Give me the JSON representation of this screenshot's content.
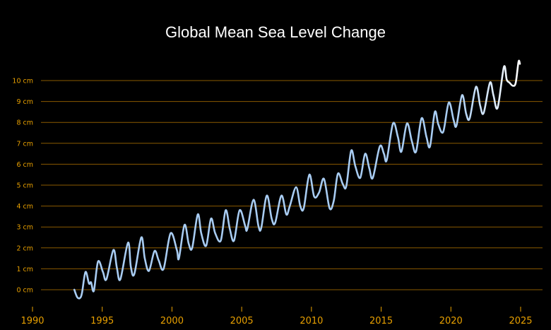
{
  "chart_data": {
    "type": "line",
    "title": "Global Mean Sea Level Change",
    "xlabel": "",
    "ylabel": "",
    "xlim": [
      1990,
      2025
    ],
    "ylim": [
      -1,
      11
    ],
    "x_ticks": [
      "1990",
      "1995",
      "2000",
      "2005",
      "2010",
      "2015",
      "2020",
      "2025"
    ],
    "y_ticks": [
      "0 cm",
      "1 cm",
      "2 cm",
      "3 cm",
      "4 cm",
      "5 cm",
      "6 cm",
      "7 cm",
      "8 cm",
      "9 cm",
      "10 cm"
    ],
    "grid": "horizontal",
    "colors": {
      "line_start": "#a8ccf2",
      "line_end": "#ffffff",
      "grid": "#8a5a00",
      "tick_labels": "#e8a000",
      "title": "#ffffff",
      "background": "#000000"
    },
    "series": [
      {
        "x": [
          1993.0,
          1993.2,
          1993.4,
          1993.55,
          1993.8,
          1994.05,
          1994.2,
          1994.4,
          1994.7,
          1995.05,
          1995.3,
          1995.8,
          1996.05,
          1996.3,
          1996.85,
          1997.05,
          1997.3,
          1997.8,
          1998.05,
          1998.35,
          1998.75,
          1999.05,
          1999.4,
          1999.9,
          2000.35,
          2000.5,
          2000.9,
          2001.2,
          2001.45,
          2001.85,
          2002.1,
          2002.45,
          2002.8,
          2003.1,
          2003.5,
          2003.85,
          2004.15,
          2004.45,
          2004.85,
          2005.25,
          2005.4,
          2005.85,
          2006.2,
          2006.4,
          2006.8,
          2007.15,
          2007.4,
          2007.85,
          2008.2,
          2008.45,
          2008.9,
          2009.2,
          2009.45,
          2009.85,
          2010.2,
          2010.55,
          2010.9,
          2011.3,
          2011.6,
          2011.9,
          2012.25,
          2012.5,
          2012.85,
          2013.15,
          2013.5,
          2013.85,
          2014.15,
          2014.4,
          2014.9,
          2015.2,
          2015.4,
          2015.85,
          2016.2,
          2016.45,
          2016.85,
          2017.2,
          2017.5,
          2017.9,
          2018.25,
          2018.5,
          2018.85,
          2019.1,
          2019.45,
          2019.85,
          2020.2,
          2020.4,
          2020.8,
          2021.1,
          2021.35,
          2021.8,
          2022.1,
          2022.35,
          2022.8,
          2023.05,
          2023.35,
          2023.8,
          2024.0,
          2024.2,
          2024.45,
          2024.65,
          2024.85,
          2024.95
        ],
        "y": [
          0.0,
          -0.35,
          -0.4,
          -0.15,
          0.85,
          0.3,
          0.35,
          -0.05,
          1.35,
          0.85,
          0.5,
          1.9,
          1.05,
          0.5,
          2.25,
          1.1,
          0.75,
          2.5,
          1.5,
          0.9,
          1.85,
          1.4,
          1.0,
          2.7,
          1.9,
          1.5,
          3.1,
          2.2,
          2.0,
          3.6,
          2.7,
          2.1,
          3.4,
          2.7,
          2.35,
          3.8,
          2.9,
          2.35,
          3.8,
          3.05,
          2.9,
          4.3,
          3.05,
          2.95,
          4.5,
          3.4,
          3.2,
          4.5,
          3.6,
          4.0,
          4.9,
          4.0,
          3.9,
          5.5,
          4.45,
          4.65,
          5.3,
          3.9,
          4.25,
          5.55,
          5.05,
          4.95,
          6.65,
          5.9,
          5.35,
          6.5,
          5.8,
          5.35,
          6.85,
          6.5,
          6.2,
          7.95,
          7.3,
          6.6,
          7.95,
          7.1,
          6.6,
          8.2,
          7.3,
          6.85,
          8.5,
          7.9,
          7.55,
          8.95,
          8.1,
          7.85,
          9.3,
          8.4,
          8.2,
          9.7,
          8.8,
          8.45,
          9.9,
          9.3,
          8.7,
          10.65,
          10.05,
          9.9,
          9.75,
          9.9,
          10.9,
          10.8
        ]
      }
    ]
  }
}
